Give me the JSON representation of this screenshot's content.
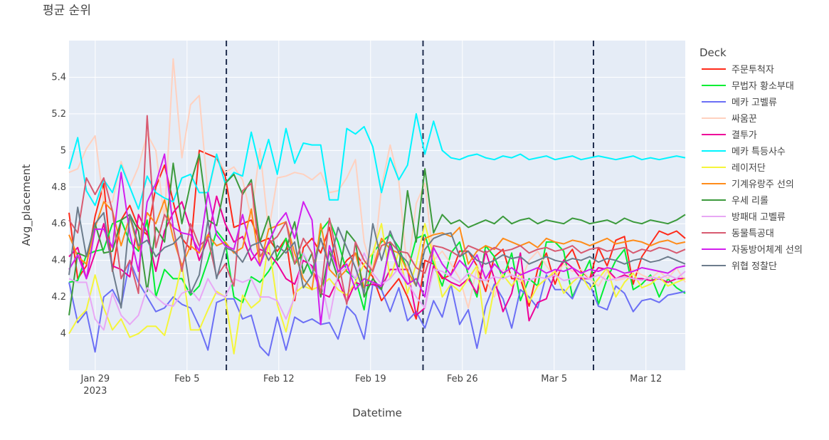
{
  "chart_data": {
    "type": "line",
    "title": "평균 순위",
    "xlabel": "Datetime",
    "ylabel": "Avg_placement",
    "x_start": "2023-01-27",
    "x_end": "2023-03-15",
    "x_ticks": [
      {
        "date": "2023-01-29",
        "label": "Jan 29",
        "sub": "2023"
      },
      {
        "date": "2023-02-05",
        "label": "Feb 5",
        "sub": ""
      },
      {
        "date": "2023-02-12",
        "label": "Feb 12",
        "sub": ""
      },
      {
        "date": "2023-02-19",
        "label": "Feb 19",
        "sub": ""
      },
      {
        "date": "2023-02-26",
        "label": "Feb 26",
        "sub": ""
      },
      {
        "date": "2023-03-05",
        "label": "Mar 5",
        "sub": ""
      },
      {
        "date": "2023-03-12",
        "label": "Mar 12",
        "sub": ""
      }
    ],
    "ylim": [
      3.8,
      5.6
    ],
    "y_ticks": [
      4,
      4.2,
      4.4,
      4.6,
      4.8,
      5,
      5.2,
      5.4
    ],
    "y_tick_labels": [
      "4",
      "4.2",
      "4.4",
      "4.6",
      "4.8",
      "5",
      "5.2",
      "5.4"
    ],
    "vlines": [
      "2023-02-08",
      "2023-02-23",
      "2023-03-08"
    ],
    "legend_title": "Deck",
    "legend_position": "right",
    "grid": true,
    "series": [
      {
        "name": "주문투척자",
        "color": "#ff2a1a",
        "values": [
          4.66,
          4.3,
          4.37,
          4.64,
          4.82,
          4.34,
          4.62,
          4.7,
          4.58,
          4.54,
          4.8,
          4.92,
          4.72,
          4.52,
          4.46,
          5.0,
          4.98,
          4.96,
          4.86,
          4.58,
          4.6,
          4.62,
          4.5,
          4.52,
          4.45,
          4.52,
          4.18,
          4.47,
          4.52,
          4.44,
          4.58,
          4.33,
          4.4,
          4.44,
          4.37,
          4.31,
          4.18,
          4.24,
          4.3,
          4.2,
          4.08,
          4.4,
          4.38,
          4.3,
          4.32,
          4.45,
          4.45,
          4.37,
          4.23,
          4.42,
          4.46,
          4.3,
          4.3,
          4.15,
          4.35,
          4.44,
          4.27,
          4.4,
          4.46,
          4.34,
          4.3,
          4.47,
          4.37,
          4.51,
          4.53,
          4.27,
          4.42,
          4.49,
          4.56,
          4.54,
          4.56,
          4.52
        ]
      },
      {
        "name": "무법자 황소부대",
        "color": "#00ee33",
        "values": [
          4.28,
          4.29,
          4.43,
          4.45,
          4.46,
          4.6,
          4.62,
          4.5,
          4.45,
          4.62,
          4.2,
          4.35,
          4.3,
          4.3,
          4.21,
          4.26,
          4.4,
          4.56,
          4.5,
          4.2,
          4.17,
          4.31,
          4.28,
          4.34,
          4.42,
          4.52,
          4.38,
          4.44,
          4.32,
          4.56,
          4.62,
          4.5,
          4.34,
          4.3,
          4.13,
          4.44,
          4.5,
          4.54,
          4.47,
          4.34,
          4.52,
          4.54,
          4.38,
          4.26,
          4.44,
          4.5,
          4.32,
          4.2,
          4.48,
          4.42,
          4.3,
          4.44,
          4.18,
          4.3,
          4.26,
          4.5,
          4.5,
          4.45,
          4.2,
          4.3,
          4.4,
          4.16,
          4.3,
          4.4,
          4.46,
          4.24,
          4.27,
          4.32,
          4.2,
          4.3,
          4.25,
          4.22
        ]
      },
      {
        "name": "메카 고벨류",
        "color": "#6b6ff5",
        "values": [
          4.28,
          4.06,
          4.12,
          3.9,
          4.2,
          4.24,
          4.15,
          4.4,
          4.28,
          4.2,
          4.12,
          4.14,
          4.2,
          4.16,
          4.14,
          4.04,
          3.91,
          4.17,
          4.19,
          4.19,
          4.08,
          4.1,
          3.93,
          3.88,
          4.09,
          3.91,
          4.09,
          4.06,
          4.08,
          4.05,
          4.06,
          3.97,
          4.15,
          4.1,
          3.97,
          4.27,
          4.24,
          4.12,
          4.25,
          4.07,
          4.12,
          4.03,
          4.18,
          4.09,
          4.27,
          4.05,
          4.13,
          3.92,
          4.15,
          4.27,
          4.19,
          4.03,
          4.24,
          4.2,
          4.14,
          4.32,
          4.24,
          4.24,
          4.19,
          4.3,
          4.27,
          4.15,
          4.13,
          4.26,
          4.22,
          4.12,
          4.18,
          4.19,
          4.17,
          4.21,
          4.22,
          4.23
        ]
      },
      {
        "name": "싸움꾼",
        "color": "#ffd1bf",
        "values": [
          4.88,
          4.9,
          5.01,
          5.08,
          4.71,
          4.72,
          4.94,
          4.8,
          4.91,
          5.09,
          5.0,
          4.62,
          5.5,
          4.96,
          5.25,
          5.3,
          4.76,
          4.97,
          4.88,
          4.91,
          4.84,
          4.63,
          5.01,
          4.56,
          4.85,
          4.86,
          4.88,
          4.87,
          4.84,
          4.88,
          4.77,
          4.78,
          4.85,
          4.95,
          4.5,
          4.33,
          4.8,
          5.03,
          4.83,
          4.33,
          4.71,
          4.82,
          4.4,
          4.45,
          4.38,
          4.3,
          4.14,
          4.36,
          4.3,
          4.2,
          4.35,
          4.32,
          4.28,
          4.4,
          4.45,
          4.37,
          4.31,
          4.38,
          4.34,
          4.35,
          4.3,
          4.26,
          4.34,
          4.29,
          4.3,
          4.35,
          4.32,
          4.3,
          4.34,
          4.3,
          4.36,
          4.28
        ]
      },
      {
        "name": "결투가",
        "color": "#ee0099",
        "values": [
          4.42,
          4.47,
          4.3,
          4.44,
          4.6,
          4.37,
          4.35,
          4.31,
          4.65,
          4.55,
          4.34,
          4.56,
          4.66,
          4.72,
          4.57,
          4.4,
          4.52,
          4.75,
          4.6,
          4.5,
          4.53,
          4.4,
          4.46,
          4.44,
          4.38,
          4.3,
          4.27,
          4.4,
          4.37,
          4.22,
          4.2,
          4.3,
          4.17,
          4.28,
          4.26,
          4.27,
          4.25,
          4.35,
          4.35,
          4.35,
          4.1,
          4.14,
          4.37,
          4.31,
          4.28,
          4.26,
          4.3,
          4.22,
          4.45,
          4.3,
          4.12,
          4.22,
          4.44,
          4.07,
          4.17,
          4.19,
          4.33,
          4.4,
          4.36,
          4.3,
          4.3,
          4.36,
          4.35,
          4.3,
          4.32,
          4.3,
          4.3,
          4.29,
          4.3,
          4.28,
          4.3,
          4.3
        ]
      },
      {
        "name": "메카 특등사수",
        "color": "#00f5ff",
        "values": [
          4.9,
          5.07,
          4.78,
          4.7,
          4.84,
          4.77,
          4.92,
          4.8,
          4.68,
          4.86,
          4.77,
          4.74,
          4.72,
          4.85,
          4.87,
          4.77,
          4.77,
          4.98,
          4.82,
          4.88,
          4.86,
          5.1,
          4.9,
          5.06,
          4.87,
          5.12,
          4.93,
          5.04,
          5.03,
          5.03,
          4.73,
          4.73,
          5.12,
          5.09,
          5.13,
          5.02,
          4.77,
          4.96,
          4.84,
          4.92,
          5.2,
          4.98,
          5.16,
          5.0,
          4.96,
          4.95,
          4.97,
          4.98,
          4.96,
          4.95,
          4.97,
          4.96,
          4.98,
          4.95,
          4.96,
          4.97,
          4.95,
          4.96,
          4.97,
          4.95,
          4.96,
          4.97,
          4.96,
          4.95,
          4.96,
          4.97,
          4.95,
          4.96,
          4.95,
          4.96,
          4.97,
          4.96
        ]
      },
      {
        "name": "레이저단",
        "color": "#f5f53a",
        "values": [
          4.0,
          4.08,
          4.13,
          4.32,
          4.14,
          4.02,
          4.08,
          3.98,
          4.0,
          4.04,
          4.04,
          3.99,
          4.17,
          4.38,
          4.02,
          4.02,
          4.13,
          4.23,
          4.2,
          3.89,
          4.21,
          4.14,
          4.18,
          4.5,
          4.16,
          4.01,
          4.22,
          4.26,
          4.24,
          4.26,
          4.3,
          4.24,
          4.21,
          4.28,
          4.38,
          4.44,
          4.6,
          4.3,
          4.45,
          4.22,
          4.38,
          4.6,
          4.42,
          4.2,
          4.27,
          4.23,
          4.3,
          4.37,
          4.0,
          4.25,
          4.32,
          4.26,
          4.33,
          4.17,
          4.26,
          4.3,
          4.34,
          4.22,
          4.28,
          4.32,
          4.24,
          4.3,
          4.36,
          4.2,
          4.28,
          4.33,
          4.25,
          4.27,
          4.31,
          4.26,
          4.28,
          4.3
        ]
      },
      {
        "name": "기계유랑주 선의",
        "color": "#ff8c1a",
        "values": [
          4.54,
          4.42,
          4.38,
          4.58,
          4.72,
          4.67,
          4.48,
          4.64,
          4.46,
          4.66,
          4.6,
          4.73,
          4.52,
          4.37,
          4.48,
          4.44,
          4.54,
          4.48,
          4.5,
          4.44,
          4.47,
          4.68,
          4.37,
          4.57,
          4.59,
          4.61,
          4.44,
          4.3,
          4.24,
          4.6,
          4.35,
          4.3,
          4.35,
          4.44,
          4.25,
          4.35,
          4.52,
          4.46,
          4.44,
          4.34,
          4.26,
          4.52,
          4.54,
          4.55,
          4.53,
          4.58,
          4.38,
          4.45,
          4.48,
          4.46,
          4.52,
          4.5,
          4.48,
          4.5,
          4.47,
          4.52,
          4.5,
          4.49,
          4.51,
          4.5,
          4.48,
          4.5,
          4.52,
          4.49,
          4.5,
          4.51,
          4.5,
          4.48,
          4.5,
          4.51,
          4.49,
          4.5
        ]
      },
      {
        "name": "우세 리롤",
        "color": "#3c9a3c",
        "values": [
          4.1,
          4.44,
          4.42,
          4.6,
          4.44,
          4.45,
          4.62,
          4.65,
          4.56,
          4.23,
          4.58,
          4.5,
          4.93,
          4.6,
          4.82,
          4.98,
          4.62,
          4.59,
          4.82,
          4.87,
          4.76,
          4.84,
          4.5,
          4.64,
          4.4,
          4.46,
          4.61,
          4.33,
          4.44,
          4.2,
          4.45,
          4.3,
          4.56,
          4.5,
          4.2,
          4.3,
          4.24,
          4.5,
          4.35,
          4.78,
          4.5,
          4.9,
          4.55,
          4.65,
          4.6,
          4.62,
          4.58,
          4.6,
          4.62,
          4.6,
          4.64,
          4.6,
          4.62,
          4.63,
          4.6,
          4.62,
          4.61,
          4.6,
          4.63,
          4.62,
          4.6,
          4.61,
          4.62,
          4.6,
          4.63,
          4.61,
          4.6,
          4.62,
          4.61,
          4.6,
          4.62,
          4.65
        ]
      },
      {
        "name": "방패대 고벨류",
        "color": "#e8a8f5",
        "values": [
          4.3,
          4.28,
          4.28,
          4.08,
          4.02,
          4.22,
          4.1,
          4.05,
          4.1,
          4.25,
          4.2,
          4.16,
          4.15,
          4.22,
          4.24,
          4.18,
          4.3,
          4.22,
          4.2,
          4.3,
          4.28,
          4.3,
          4.2,
          4.2,
          4.18,
          4.08,
          4.2,
          4.44,
          4.35,
          4.3,
          4.08,
          4.33,
          4.36,
          4.3,
          4.44,
          4.33,
          4.27,
          4.3,
          4.36,
          4.28,
          4.2,
          4.14,
          4.35,
          4.34,
          4.31,
          4.28,
          4.33,
          4.3,
          4.29,
          4.31,
          4.3,
          4.32,
          4.3,
          4.29,
          4.31,
          4.3,
          4.32,
          4.29,
          4.3,
          4.31,
          4.3,
          4.32,
          4.29,
          4.3,
          4.31,
          4.3,
          4.29,
          4.31,
          4.3,
          4.32,
          4.3,
          4.34
        ]
      },
      {
        "name": "동물특공대",
        "color": "#d85a70",
        "values": [
          4.62,
          4.55,
          4.85,
          4.76,
          4.85,
          4.67,
          4.3,
          4.4,
          4.22,
          5.19,
          4.47,
          4.65,
          4.58,
          4.34,
          4.6,
          4.48,
          4.52,
          4.31,
          4.38,
          4.26,
          4.78,
          4.82,
          4.42,
          4.49,
          4.53,
          4.61,
          4.38,
          4.52,
          4.44,
          4.22,
          4.63,
          4.4,
          4.16,
          4.5,
          4.4,
          4.34,
          4.48,
          4.5,
          4.45,
          4.44,
          4.36,
          4.33,
          4.48,
          4.47,
          4.45,
          4.42,
          4.48,
          4.46,
          4.44,
          4.47,
          4.45,
          4.46,
          4.48,
          4.44,
          4.46,
          4.47,
          4.45,
          4.46,
          4.48,
          4.44,
          4.46,
          4.47,
          4.45,
          4.46,
          4.47,
          4.44,
          4.46,
          4.45,
          4.47,
          4.46,
          4.44,
          4.46
        ]
      },
      {
        "name": "자동방어체계 선의",
        "color": "#d21eee",
        "values": [
          4.35,
          4.43,
          4.3,
          4.57,
          4.57,
          4.47,
          4.88,
          4.55,
          4.34,
          4.72,
          4.82,
          4.98,
          4.58,
          4.55,
          4.54,
          4.45,
          4.77,
          4.54,
          4.48,
          4.46,
          4.65,
          4.45,
          4.37,
          4.5,
          4.6,
          4.66,
          4.52,
          4.72,
          4.62,
          4.05,
          4.48,
          4.34,
          4.38,
          4.24,
          4.3,
          4.28,
          4.26,
          4.48,
          4.34,
          4.27,
          4.3,
          4.2,
          4.47,
          4.38,
          4.32,
          4.4,
          4.35,
          4.43,
          4.3,
          4.38,
          4.33,
          4.36,
          4.32,
          4.34,
          4.36,
          4.33,
          4.35,
          4.34,
          4.36,
          4.33,
          4.35,
          4.34,
          4.36,
          4.35,
          4.33,
          4.34,
          4.36,
          4.35,
          4.34,
          4.33,
          4.36,
          4.37
        ]
      },
      {
        "name": "위협 정찰단",
        "color": "#6c7c8c",
        "values": [
          4.32,
          4.69,
          4.42,
          4.6,
          4.66,
          4.35,
          4.14,
          4.65,
          4.48,
          4.51,
          4.42,
          4.47,
          4.49,
          4.54,
          4.22,
          4.32,
          4.62,
          4.3,
          4.47,
          4.45,
          4.39,
          4.48,
          4.5,
          4.4,
          4.48,
          4.44,
          4.5,
          4.25,
          4.32,
          4.52,
          4.37,
          4.58,
          4.47,
          4.36,
          4.22,
          4.6,
          4.4,
          4.56,
          4.44,
          4.39,
          4.26,
          4.46,
          4.52,
          4.54,
          4.55,
          4.42,
          4.45,
          4.4,
          4.38,
          4.4,
          4.43,
          4.41,
          4.42,
          4.38,
          4.4,
          4.42,
          4.4,
          4.39,
          4.41,
          4.4,
          4.42,
          4.39,
          4.41,
          4.4,
          4.38,
          4.4,
          4.41,
          4.39,
          4.4,
          4.42,
          4.4,
          4.38
        ]
      }
    ]
  }
}
